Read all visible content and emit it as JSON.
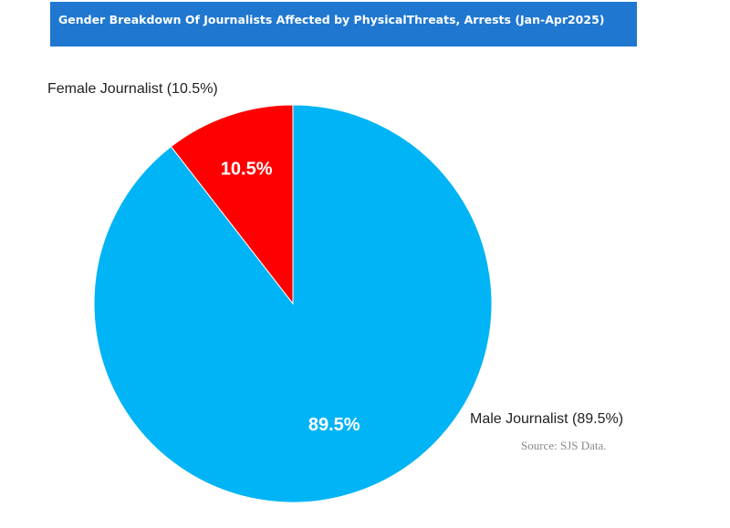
{
  "chart_data": {
    "type": "pie",
    "title": "Gender Breakdown Of Journalists Affected by PhysicalThreats, Arrests (Jan-Apr2025)",
    "slices": [
      {
        "label": "Female Journalist (10.5%)",
        "value": 10.5,
        "data_label": "10.5%",
        "color": "#ff0000"
      },
      {
        "label": "Male Journalist (89.5%)",
        "value": 89.5,
        "data_label": "89.5%",
        "color": "#00b4f5"
      }
    ],
    "source": "Source: SJS Data."
  }
}
